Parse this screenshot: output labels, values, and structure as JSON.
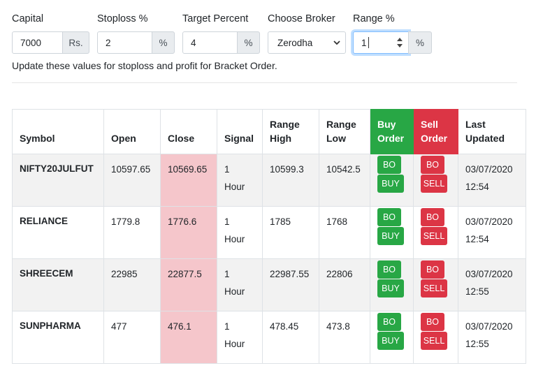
{
  "form": {
    "capital": {
      "label": "Capital",
      "value": "7000",
      "addon": "Rs."
    },
    "stoploss": {
      "label": "Stoploss %",
      "value": "2",
      "addon": "%"
    },
    "target": {
      "label": "Target Percent",
      "value": "4",
      "addon": "%"
    },
    "broker": {
      "label": "Choose Broker",
      "value": "Zerodha"
    },
    "range": {
      "label": "Range %",
      "value": "1",
      "addon": "%"
    },
    "hint": "Update these values for stoploss and profit for Bracket Order."
  },
  "table": {
    "headers": {
      "symbol": "Symbol",
      "open": "Open",
      "close": "Close",
      "signal": "Signal",
      "range_high_1": "Range",
      "range_high_2": "High",
      "range_low_1": "Range",
      "range_low_2": "Low",
      "buy_1": "Buy",
      "buy_2": "Order",
      "sell_1": "Sell",
      "sell_2": "Order",
      "last_1": "Last",
      "last_2": "Updated"
    },
    "buttons": {
      "bo": "BO",
      "buy": "BUY",
      "sell": "SELL"
    },
    "rows": [
      {
        "symbol": "NIFTY20JULFUT",
        "open": "10597.65",
        "close": "10569.65",
        "signal_1": "1",
        "signal_2": "Hour",
        "range_high": "10599.3",
        "range_low": "10542.5",
        "date": "03/07/2020",
        "time": "12:54"
      },
      {
        "symbol": "RELIANCE",
        "open": "1779.8",
        "close": "1776.6",
        "signal_1": "1",
        "signal_2": "Hour",
        "range_high": "1785",
        "range_low": "1768",
        "date": "03/07/2020",
        "time": "12:54"
      },
      {
        "symbol": "SHREECEM",
        "open": "22985",
        "close": "22877.5",
        "signal_1": "1",
        "signal_2": "Hour",
        "range_high": "22987.55",
        "range_low": "22806",
        "date": "03/07/2020",
        "time": "12:55"
      },
      {
        "symbol": "SUNPHARMA",
        "open": "477",
        "close": "476.1",
        "signal_1": "1",
        "signal_2": "Hour",
        "range_high": "478.45",
        "range_low": "473.8",
        "date": "03/07/2020",
        "time": "12:55"
      }
    ]
  },
  "colors": {
    "buy": "#28a745",
    "sell": "#dc3545",
    "close_highlight": "#f5c6cb",
    "focus": "#80bdff"
  }
}
